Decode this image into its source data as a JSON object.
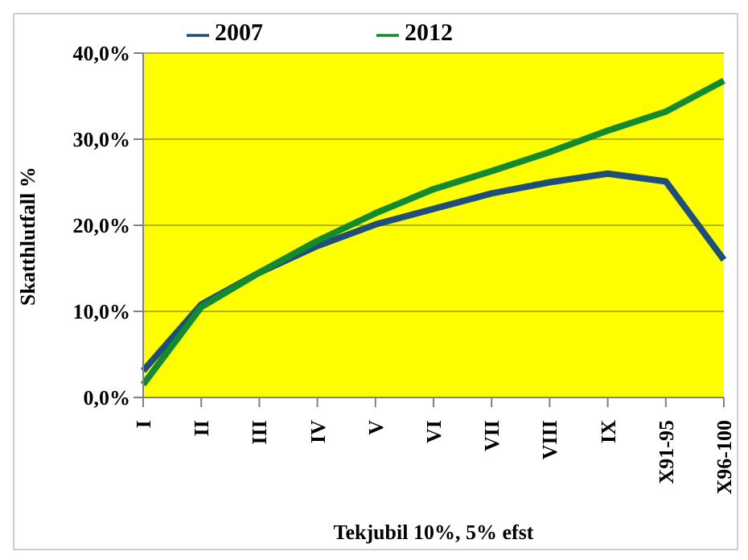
{
  "chart_data": {
    "type": "line",
    "xlabel": "Tekjubil 10%, 5% efst",
    "ylabel": "Skatthlutfall %",
    "categories": [
      "I",
      "II",
      "III",
      "IV",
      "V",
      "VI",
      "VII",
      "VIII",
      "IX",
      "X91-95",
      "X96-100"
    ],
    "series": [
      {
        "name": "2007",
        "color": "#1f4e79",
        "values": [
          3.1,
          10.8,
          14.5,
          17.6,
          20.1,
          21.9,
          23.7,
          25.0,
          26.0,
          25.1,
          16.0
        ]
      },
      {
        "name": "2012",
        "color": "#138a2e",
        "values": [
          1.5,
          10.5,
          14.5,
          18.2,
          21.4,
          24.2,
          26.3,
          28.5,
          31.0,
          33.2,
          36.8
        ]
      }
    ],
    "ylim": [
      0,
      40
    ],
    "yticks": [
      {
        "value": 0,
        "label": "0,0%"
      },
      {
        "value": 10,
        "label": "10,0%"
      },
      {
        "value": 20,
        "label": "20,0%"
      },
      {
        "value": 30,
        "label": "30,0%"
      },
      {
        "value": 40,
        "label": "40,0%"
      }
    ],
    "grid": "y",
    "legend": "top",
    "marker": "none",
    "line_style": "solid"
  }
}
